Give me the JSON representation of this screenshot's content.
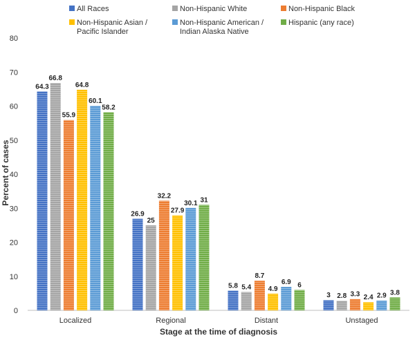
{
  "chart_data": {
    "type": "bar",
    "title": "",
    "xlabel": "Stage at the time of diagnosis",
    "ylabel": "Percent of cases",
    "ylim": [
      0,
      80
    ],
    "yticks": [
      0,
      10,
      20,
      30,
      40,
      50,
      60,
      70,
      80
    ],
    "grid": false,
    "legend_position": "top",
    "categories": [
      "Localized",
      "Regional",
      "Distant",
      "Unstaged"
    ],
    "series": [
      {
        "name": "All Races",
        "color": "#4472C4",
        "values": [
          64.3,
          26.9,
          5.8,
          3
        ]
      },
      {
        "name": "Non-Hispanic White",
        "color": "#A5A5A5",
        "values": [
          66.8,
          25,
          5.4,
          2.8
        ]
      },
      {
        "name": "Non-Hispanic Black",
        "color": "#ED7D31",
        "values": [
          55.9,
          32.2,
          8.7,
          3.3
        ]
      },
      {
        "name": "Non-Hispanic Asian / Pacific Islander",
        "color": "#FFC000",
        "values": [
          64.8,
          27.9,
          4.9,
          2.4
        ]
      },
      {
        "name": "Non-Hispanic American / Indian Alaska Native",
        "color": "#5B9BD5",
        "values": [
          60.1,
          30.1,
          6.9,
          2.9
        ]
      },
      {
        "name": "Hispanic (any race)",
        "color": "#70AD47",
        "values": [
          58.2,
          31,
          6,
          3.8
        ]
      }
    ],
    "legend": [
      {
        "line1": "All Races",
        "line2": ""
      },
      {
        "line1": "Non-Hispanic White",
        "line2": ""
      },
      {
        "line1": "Non-Hispanic Black",
        "line2": ""
      },
      {
        "line1": "Non-Hispanic Asian /",
        "line2": "Pacific Islander"
      },
      {
        "line1": "Non-Hispanic American /",
        "line2": "Indian Alaska Native"
      },
      {
        "line1": "Hispanic (any race)",
        "line2": ""
      }
    ]
  }
}
